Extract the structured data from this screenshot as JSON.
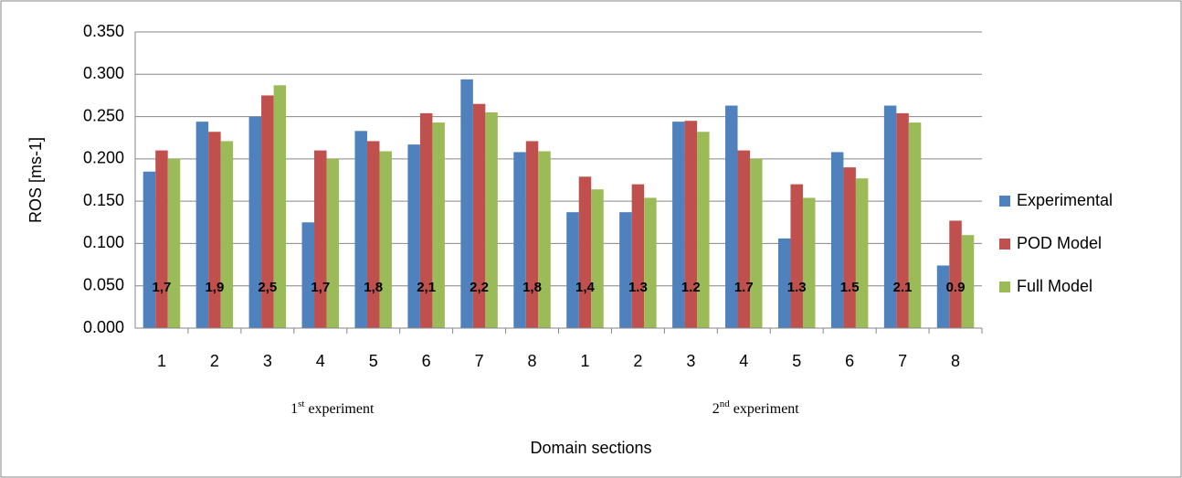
{
  "chart_data": {
    "type": "bar",
    "xlabel": "Domain sections",
    "ylabel": "ROS [ms-1]",
    "categories": [
      "1",
      "2",
      "3",
      "4",
      "5",
      "6",
      "7",
      "8",
      "1",
      "2",
      "3",
      "4",
      "5",
      "6",
      "7",
      "8"
    ],
    "groups": [
      {
        "base": "1",
        "sup": "st",
        "text": " experiment"
      },
      {
        "base": "2",
        "sup": "nd",
        "text": " experiment"
      }
    ],
    "series": [
      {
        "name": "Experimental",
        "color": "#4F81BD",
        "values": [
          0.185,
          0.244,
          0.25,
          0.125,
          0.233,
          0.217,
          0.294,
          0.208,
          0.137,
          0.137,
          0.244,
          0.263,
          0.106,
          0.208,
          0.263,
          0.074
        ]
      },
      {
        "name": "POD Model",
        "color": "#C0504D",
        "values": [
          0.21,
          0.232,
          0.275,
          0.21,
          0.221,
          0.254,
          0.265,
          0.221,
          0.179,
          0.17,
          0.245,
          0.21,
          0.17,
          0.19,
          0.254,
          0.127
        ]
      },
      {
        "name": "Full Model",
        "color": "#9BBB59",
        "values": [
          0.2,
          0.221,
          0.287,
          0.2,
          0.209,
          0.243,
          0.255,
          0.209,
          0.164,
          0.154,
          0.232,
          0.2,
          0.154,
          0.177,
          0.243,
          0.11
        ]
      }
    ],
    "annotations": [
      "1,7",
      "1,9",
      "2,5",
      "1,7",
      "1,8",
      "2,1",
      "2,2",
      "1,8",
      "1,4",
      "1.3",
      "1.2",
      "1.7",
      "1.3",
      "1.5",
      "2.1",
      "0.9"
    ],
    "ylim": [
      0,
      0.35
    ],
    "yticks": [
      {
        "value": 0,
        "label": "0.000"
      },
      {
        "value": 0.05,
        "label": "0.050"
      },
      {
        "value": 0.1,
        "label": "0.100"
      },
      {
        "value": 0.15,
        "label": "0.150"
      },
      {
        "value": 0.2,
        "label": "0.200"
      },
      {
        "value": 0.25,
        "label": "0.250"
      },
      {
        "value": 0.3,
        "label": "0.300"
      },
      {
        "value": 0.35,
        "label": "0.350"
      }
    ],
    "grid": true,
    "legend": "right"
  }
}
